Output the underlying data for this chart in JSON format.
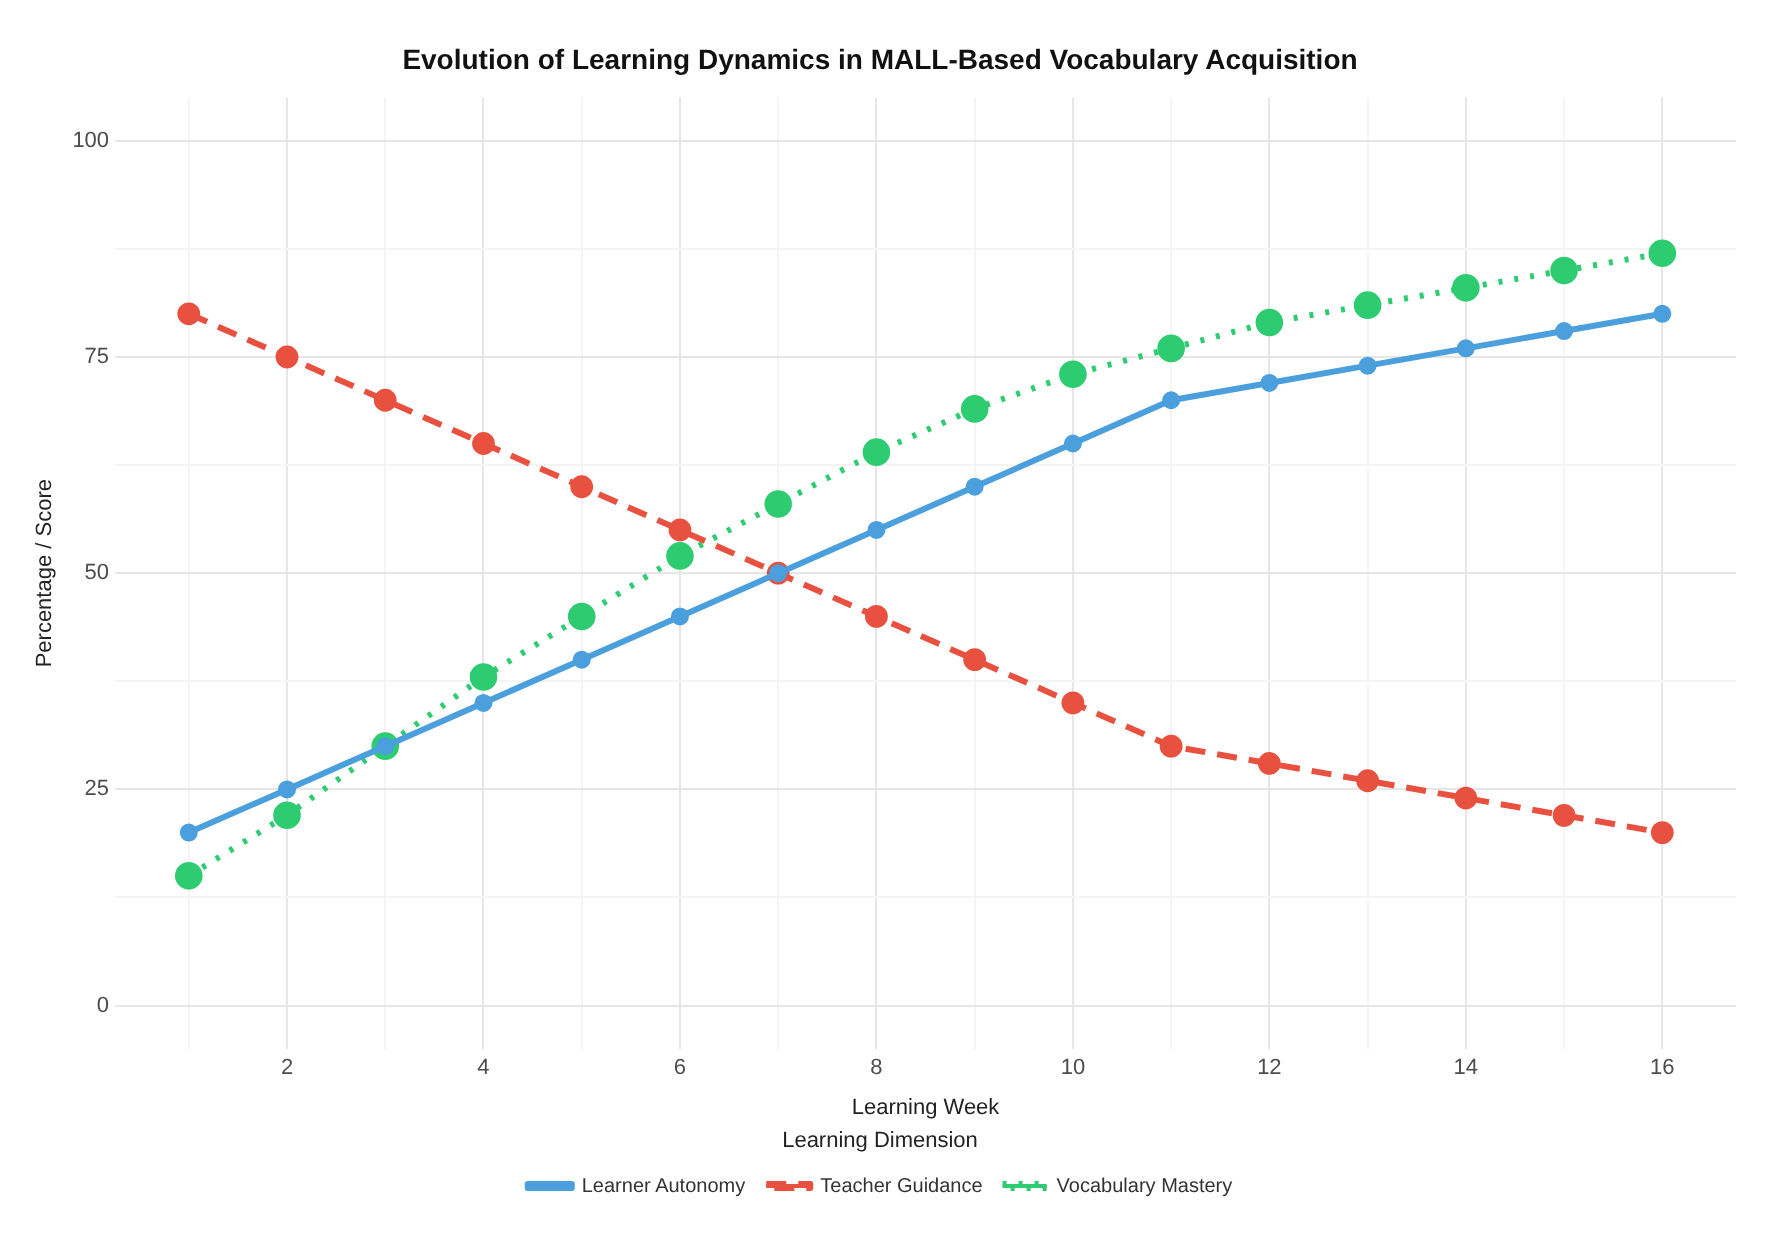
{
  "chart_data": {
    "type": "line",
    "title": "Evolution of Learning Dynamics in MALL-Based Vocabulary Acquisition",
    "xlabel": "Learning Week",
    "ylabel": "Percentage / Score",
    "legend_title": "Learning Dimension",
    "x": [
      1,
      2,
      3,
      4,
      5,
      6,
      7,
      8,
      9,
      10,
      11,
      12,
      13,
      14,
      15,
      16
    ],
    "series": [
      {
        "name": "Learner Autonomy",
        "color": "#4a9fdc",
        "line_style": "solid",
        "values": [
          20,
          25,
          30,
          35,
          40,
          45,
          50,
          55,
          60,
          65,
          70,
          72,
          74,
          76,
          78,
          80
        ]
      },
      {
        "name": "Teacher Guidance",
        "color": "#e8513f",
        "line_style": "dashed",
        "values": [
          80,
          75,
          70,
          65,
          60,
          55,
          50,
          45,
          40,
          35,
          30,
          28,
          26,
          24,
          22,
          20
        ]
      },
      {
        "name": "Vocabulary Mastery",
        "color": "#2ecc71",
        "line_style": "dotted",
        "values": [
          15,
          22,
          30,
          38,
          45,
          52,
          58,
          64,
          69,
          73,
          76,
          79,
          81,
          83,
          85,
          87
        ]
      }
    ],
    "xlim": [
      0.25,
      16.75
    ],
    "xticks": [
      {
        "value": 1,
        "label": null
      },
      2,
      {
        "value": 3,
        "label": null
      },
      4,
      {
        "value": 5,
        "label": null
      },
      6,
      {
        "value": 7,
        "label": null
      },
      8,
      {
        "value": 9,
        "label": null
      },
      10,
      {
        "value": 11,
        "label": null
      },
      12,
      {
        "value": 13,
        "label": null
      },
      14,
      {
        "value": 15,
        "label": null
      },
      16
    ],
    "ylim": [
      -5,
      105
    ],
    "yticks": [
      0,
      {
        "value": 12.5,
        "label": null
      },
      25,
      {
        "value": 37.5,
        "label": null
      },
      50,
      {
        "value": 62.5,
        "label": null
      },
      75,
      {
        "value": 87.5,
        "label": null
      },
      100
    ],
    "grid": true,
    "legend": "bottom",
    "marker": "circle"
  }
}
